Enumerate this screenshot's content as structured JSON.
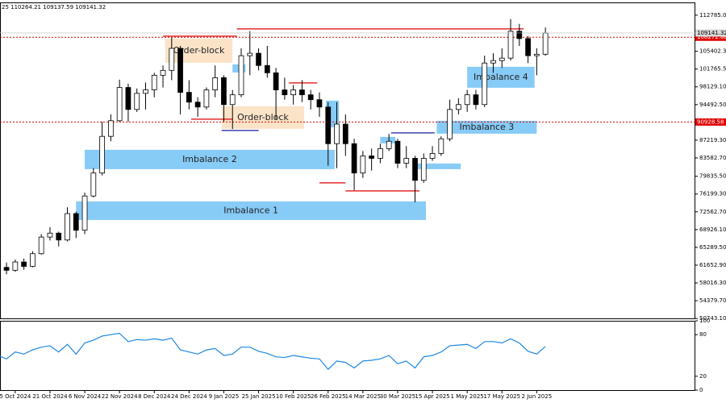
{
  "chart_data": [
    {
      "type": "candlestick",
      "title": "25 110264.21 109137.59 109141.32",
      "x": [
        "2024-09-27",
        "2024-10-01",
        "2024-10-05",
        "2024-10-09",
        "2024-10-13",
        "2024-10-17",
        "2024-10-21",
        "2024-10-25",
        "2024-10-29",
        "2024-11-02",
        "2024-11-06",
        "2024-11-10",
        "2024-11-14",
        "2024-11-18",
        "2024-11-22",
        "2024-11-26",
        "2024-11-30",
        "2024-12-04",
        "2024-12-08",
        "2024-12-12",
        "2024-12-16",
        "2024-12-20",
        "2024-12-24",
        "2024-12-28",
        "2025-01-01",
        "2025-01-05",
        "2025-01-09",
        "2025-01-13",
        "2025-01-17",
        "2025-01-21",
        "2025-01-25",
        "2025-01-29",
        "2025-02-02",
        "2025-02-06",
        "2025-02-10",
        "2025-02-14",
        "2025-02-18",
        "2025-02-22",
        "2025-02-26",
        "2025-03-02",
        "2025-03-06",
        "2025-03-10",
        "2025-03-14",
        "2025-03-18",
        "2025-03-22",
        "2025-03-26",
        "2025-03-30",
        "2025-04-03",
        "2025-04-07",
        "2025-04-11",
        "2025-04-15",
        "2025-04-19",
        "2025-04-23",
        "2025-04-27",
        "2025-05-01",
        "2025-05-05",
        "2025-05-09",
        "2025-05-13",
        "2025-05-17",
        "2025-05-21",
        "2025-05-25",
        "2025-05-29",
        "2025-06-02",
        "2025-06-06"
      ],
      "open": [
        62000,
        61200,
        60600,
        62300,
        61400,
        64000,
        67400,
        68200,
        66800,
        72200,
        68800,
        75800,
        80500,
        88000,
        91200,
        98000,
        93500,
        96800,
        97500,
        100500,
        101500,
        106000,
        97000,
        95000,
        94000,
        97500,
        100000,
        94500,
        96500,
        104500,
        105000,
        102500,
        101000,
        97500,
        96500,
        97500,
        96500,
        95500,
        94000,
        86500,
        90500,
        86500,
        80500,
        84000,
        83500,
        85500,
        87000,
        82500,
        83500,
        79000,
        83500,
        84500,
        87500,
        93500,
        94500,
        96500,
        94500,
        103000,
        103500,
        104000,
        109500,
        108000,
        104500,
        104800
      ],
      "high": [
        63200,
        62200,
        62800,
        63000,
        64500,
        68000,
        69400,
        68500,
        73500,
        72600,
        76500,
        81500,
        91000,
        92500,
        99600,
        98800,
        97800,
        99000,
        101000,
        102500,
        108200,
        106500,
        99500,
        96000,
        98000,
        102500,
        100500,
        97500,
        106000,
        109500,
        106000,
        106500,
        102000,
        100000,
        98500,
        99500,
        97500,
        97000,
        95000,
        95000,
        92500,
        87500,
        85000,
        85500,
        86500,
        88500,
        87500,
        86000,
        84000,
        84500,
        86000,
        88000,
        95500,
        95800,
        97500,
        97500,
        104500,
        105000,
        106000,
        112000,
        111000,
        108500,
        106000,
        110264
      ],
      "low": [
        60800,
        59800,
        60300,
        60700,
        61200,
        63800,
        66700,
        65500,
        66500,
        67200,
        68000,
        75500,
        80000,
        87000,
        91000,
        91000,
        93000,
        93500,
        96000,
        98000,
        99500,
        92500,
        93500,
        92000,
        93500,
        96000,
        91000,
        89500,
        96000,
        100500,
        101500,
        100000,
        91500,
        95500,
        94500,
        95000,
        93500,
        92000,
        82000,
        81500,
        84000,
        77000,
        79500,
        81000,
        82500,
        85000,
        81500,
        81500,
        74500,
        78500,
        83000,
        84000,
        87000,
        92500,
        93000,
        93500,
        94000,
        101000,
        102000,
        103500,
        106500,
        103000,
        100500,
        104500
      ],
      "close": [
        61200,
        60600,
        62300,
        61400,
        64000,
        67400,
        68200,
        66800,
        72200,
        68800,
        75800,
        80500,
        88000,
        91200,
        98000,
        93500,
        96800,
        97500,
        100500,
        101500,
        106000,
        97000,
        95000,
        94000,
        97500,
        100000,
        94500,
        96500,
        104500,
        105000,
        102500,
        101000,
        97500,
        96500,
        97500,
        96500,
        95500,
        94000,
        86500,
        90500,
        86500,
        80500,
        84000,
        83500,
        85500,
        87000,
        82500,
        83500,
        79000,
        83500,
        84500,
        87500,
        93500,
        94500,
        96500,
        94500,
        103000,
        103500,
        104000,
        109500,
        108000,
        104500,
        104800,
        109141
      ],
      "up_color": "#ffffff",
      "down_color": "#000000",
      "outline_color": "#000000",
      "xlim": [
        "2024-09-28",
        "2025-08-14"
      ],
      "xticks": [
        {
          "value": "2024-10-05",
          "label": "5 Oct 2024"
        },
        {
          "value": "2024-10-21",
          "label": "21 Oct 2024"
        },
        {
          "value": "2024-11-06",
          "label": "6 Nov 2024"
        },
        {
          "value": "2024-11-22",
          "label": "22 Nov 2024"
        },
        {
          "value": "2024-12-08",
          "label": "8 Dec 2024"
        },
        {
          "value": "2024-12-24",
          "label": "24 Dec 2024"
        },
        {
          "value": "2025-01-09",
          "label": "9 Jan 2025"
        },
        {
          "value": "2025-01-25",
          "label": "25 Jan 2025"
        },
        {
          "value": "2025-02-10",
          "label": "10 Feb 2025"
        },
        {
          "value": "2025-02-26",
          "label": "26 Feb 2025"
        },
        {
          "value": "2025-03-14",
          "label": "14 Mar 2025"
        },
        {
          "value": "2025-03-30",
          "label": "30 Mar 2025"
        },
        {
          "value": "2025-04-15",
          "label": "15 Apr 2025"
        },
        {
          "value": "2025-05-01",
          "label": "1 May 2025"
        },
        {
          "value": "2025-05-17",
          "label": "17 May 2025"
        },
        {
          "value": "2025-06-02",
          "label": "2 Jun 2025"
        }
      ],
      "ylim": [
        50600,
        115400
      ],
      "yticks": [
        {
          "value": 112785,
          "label": "112785.00"
        },
        {
          "value": 105402.3,
          "label": "105402.30"
        },
        {
          "value": 101765.5,
          "label": "101765.50"
        },
        {
          "value": 98129.1,
          "label": "98129.10"
        },
        {
          "value": 94492.5,
          "label": "94492.50"
        },
        {
          "value": 87219.3,
          "label": "87219.30"
        },
        {
          "value": 83582.7,
          "label": "83582.70"
        },
        {
          "value": 79835.5,
          "label": "79835.50"
        },
        {
          "value": 76199.3,
          "label": "76199.30"
        },
        {
          "value": 72562.7,
          "label": "72562.70"
        },
        {
          "value": 68926.1,
          "label": "68926.10"
        },
        {
          "value": 65289.5,
          "label": "65289.50"
        },
        {
          "value": 61652.9,
          "label": "61652.90"
        },
        {
          "value": 58016.3,
          "label": "58016.30"
        },
        {
          "value": 54379.7,
          "label": "54379.70"
        },
        {
          "value": 50743.1,
          "label": "50743.10"
        }
      ],
      "zones": [
        {
          "label": "Order-block",
          "ylim": [
            103055,
            108003
          ],
          "x": [
            "2024-12-13",
            "2025-01-13"
          ],
          "color": "#fbe3c8"
        },
        {
          "label": "Order-block",
          "ylim": [
            89534,
            94150
          ],
          "x": [
            "2025-01-08",
            "2025-02-15"
          ],
          "color": "#fbe3c8"
        },
        {
          "label": "Imbalance 2",
          "ylim": [
            81289,
            85246
          ],
          "x": [
            "2024-11-06",
            "2025-03-01"
          ],
          "color": "#87cbf7"
        },
        {
          "label": "Imbalance 1",
          "ylim": [
            70900,
            74692
          ],
          "x": [
            "2024-11-02",
            "2025-04-12"
          ],
          "color": "#87cbf7"
        },
        {
          "label": "Imbalance 3",
          "ylim": [
            88545,
            91183
          ],
          "x": [
            "2025-04-17",
            "2025-06-02"
          ],
          "color": "#87cbf7"
        },
        {
          "label": "Imbalance 4",
          "ylim": [
            97944,
            102231
          ],
          "x": [
            "2025-05-01",
            "2025-06-01"
          ],
          "color": "#87cbf7"
        },
        {
          "ylim": [
            101077,
            102726
          ],
          "x": [
            "2025-01-13",
            "2025-01-19"
          ],
          "color": "#87cbf7"
        },
        {
          "ylim": [
            89864,
            95306
          ],
          "x": [
            "2025-02-25",
            "2025-03-03"
          ],
          "color": "#87cbf7"
        },
        {
          "ylim": [
            86566,
            87886
          ],
          "x": [
            "2025-03-22",
            "2025-03-29"
          ],
          "color": "#87cbf7"
        },
        {
          "ylim": [
            81289,
            82443
          ],
          "x": [
            "2025-04-06",
            "2025-04-28"
          ],
          "color": "#87cbf7"
        }
      ],
      "lines": [
        {
          "value": 108500,
          "x": [
            "2024-12-12",
            "2025-01-15"
          ],
          "color": "#e00000"
        },
        {
          "value": 109982,
          "x": [
            "2025-01-15",
            "2025-05-27"
          ],
          "color": "#e00000"
        },
        {
          "value": 98934,
          "x": [
            "2025-02-08",
            "2025-02-21"
          ],
          "color": "#e00000"
        },
        {
          "value": 91513,
          "x": [
            "2024-12-25",
            "2025-01-13"
          ],
          "color": "#e00000"
        },
        {
          "value": 78485,
          "x": [
            "2025-02-22",
            "2025-03-06"
          ],
          "color": "#e00000"
        },
        {
          "value": 76836,
          "x": [
            "2025-03-06",
            "2025-04-09"
          ],
          "color": "#e00000"
        },
        {
          "value": 89205,
          "x": [
            "2025-01-08",
            "2025-01-25"
          ],
          "color": "#1a1aa6"
        },
        {
          "value": 88710,
          "x": [
            "2025-03-27",
            "2025-04-16"
          ],
          "color": "#1a1aa6"
        }
      ],
      "levels": [
        {
          "value": 108272.88,
          "color": "#e00000"
        },
        {
          "value": 90928.58,
          "color": "#e00000"
        }
      ],
      "last_price": 109141.32
    },
    {
      "type": "line",
      "x": [
        "2024-09-27",
        "2024-10-01",
        "2024-10-05",
        "2024-10-09",
        "2024-10-13",
        "2024-10-17",
        "2024-10-21",
        "2024-10-25",
        "2024-10-29",
        "2024-11-02",
        "2024-11-06",
        "2024-11-10",
        "2024-11-14",
        "2024-11-18",
        "2024-11-22",
        "2024-11-26",
        "2024-11-30",
        "2024-12-04",
        "2024-12-08",
        "2024-12-12",
        "2024-12-16",
        "2024-12-20",
        "2024-12-24",
        "2024-12-28",
        "2025-01-01",
        "2025-01-05",
        "2025-01-09",
        "2025-01-13",
        "2025-01-17",
        "2025-01-21",
        "2025-01-25",
        "2025-01-29",
        "2025-02-02",
        "2025-02-06",
        "2025-02-10",
        "2025-02-14",
        "2025-02-18",
        "2025-02-22",
        "2025-02-26",
        "2025-03-02",
        "2025-03-06",
        "2025-03-10",
        "2025-03-14",
        "2025-03-18",
        "2025-03-22",
        "2025-03-26",
        "2025-03-30",
        "2025-04-03",
        "2025-04-07",
        "2025-04-11",
        "2025-04-15",
        "2025-04-19",
        "2025-04-23",
        "2025-04-27",
        "2025-05-01",
        "2025-05-05",
        "2025-05-09",
        "2025-05-13",
        "2025-05-17",
        "2025-05-21",
        "2025-05-25",
        "2025-05-29",
        "2025-06-02",
        "2025-06-06"
      ],
      "values": [
        50,
        45,
        55,
        52,
        58,
        62,
        64,
        55,
        66,
        52,
        68,
        72,
        78,
        80,
        82,
        70,
        73,
        72,
        74,
        72,
        75,
        58,
        55,
        52,
        58,
        60,
        50,
        52,
        62,
        62,
        56,
        53,
        48,
        47,
        50,
        48,
        46,
        45,
        30,
        42,
        40,
        32,
        42,
        43,
        45,
        50,
        38,
        42,
        32,
        48,
        50,
        55,
        64,
        65,
        66,
        60,
        70,
        70,
        68,
        74,
        68,
        56,
        52,
        63
      ],
      "color": "#1e88e5",
      "ylim": [
        0,
        100
      ],
      "yticks": [
        100,
        80,
        20,
        0
      ]
    }
  ]
}
